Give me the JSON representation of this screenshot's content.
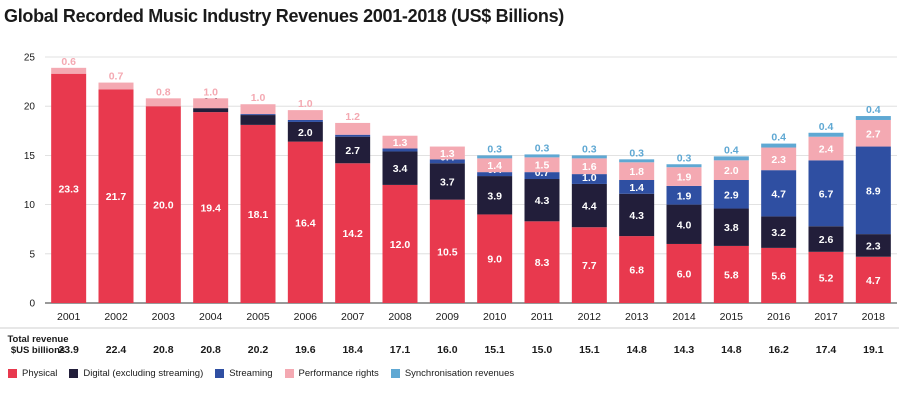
{
  "chart_data": {
    "type": "bar",
    "stacked": true,
    "title": "Global Recorded Music Industry Revenues 2001-2018 (US$ Billions)",
    "categories": [
      "2001",
      "2002",
      "2003",
      "2004",
      "2005",
      "2006",
      "2007",
      "2008",
      "2009",
      "2010",
      "2011",
      "2012",
      "2013",
      "2014",
      "2015",
      "2016",
      "2017",
      "2018"
    ],
    "series": [
      {
        "name": "Physical",
        "color": "#e8394e",
        "values": [
          23.3,
          21.7,
          20.0,
          19.4,
          18.1,
          16.4,
          14.2,
          12.0,
          10.5,
          9.0,
          8.3,
          7.7,
          6.8,
          6.0,
          5.8,
          5.6,
          5.2,
          4.7
        ]
      },
      {
        "name": "Digital (excluding streaming)",
        "color": "#221e3a",
        "values": [
          0,
          0,
          0,
          0.4,
          1.0,
          2.0,
          2.7,
          3.4,
          3.7,
          3.9,
          4.3,
          4.4,
          4.3,
          4.0,
          3.8,
          3.2,
          2.6,
          2.3
        ]
      },
      {
        "name": "Streaming",
        "color": "#2f4fa2",
        "values": [
          0,
          0,
          0,
          0,
          0.1,
          0.2,
          0.2,
          0.3,
          0.4,
          0.4,
          0.7,
          1.0,
          1.4,
          1.9,
          2.9,
          4.7,
          6.7,
          8.9
        ]
      },
      {
        "name": "Performance rights",
        "color": "#f4a9b2",
        "values": [
          0.6,
          0.7,
          0.8,
          1.0,
          1.0,
          1.0,
          1.2,
          1.3,
          1.3,
          1.4,
          1.5,
          1.6,
          1.8,
          1.9,
          2.0,
          2.3,
          2.4,
          2.7
        ]
      },
      {
        "name": "Synchronisation revenues",
        "color": "#5fa8d3",
        "values": [
          0,
          0,
          0,
          0,
          0,
          0,
          0,
          0,
          0,
          0.3,
          0.3,
          0.3,
          0.3,
          0.3,
          0.4,
          0.4,
          0.4,
          0.4
        ]
      }
    ],
    "totals": [
      "23.9",
      "22.4",
      "20.8",
      "20.8",
      "20.2",
      "19.6",
      "18.4",
      "17.1",
      "16.0",
      "15.1",
      "15.0",
      "15.1",
      "14.8",
      "14.3",
      "14.8",
      "16.2",
      "17.4",
      "19.1"
    ],
    "totals_label": [
      "Total revenue",
      "$US billions"
    ],
    "yticks": [
      0,
      5,
      10,
      15,
      20,
      25
    ],
    "ylim": [
      0,
      25
    ],
    "grid": true,
    "legend": "bottom"
  }
}
